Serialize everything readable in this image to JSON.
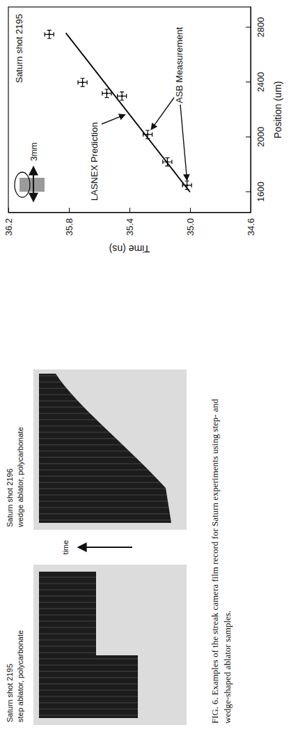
{
  "figure": {
    "panels": [
      {
        "label": "Saturn shot 2195",
        "sublabel": "step ablator, polycarbonate"
      },
      {
        "label": "Saturn shot 2196",
        "sublabel": "wedge ablator, polycarbonate"
      }
    ],
    "time_label": "time",
    "caption": "FIG. 6. Examples of the streak camera film record for Saturn experiments using step- and wedge-shaped ablator samples."
  },
  "chart_data": {
    "type": "scatter",
    "title": "Saturn shot 2195",
    "xlabel": "Position (um)",
    "ylabel": "Time (ns)",
    "inset_label": "3mm",
    "series": [
      {
        "name": "ASB Measurement",
        "type": "scatter",
        "marker": "cross",
        "color": "#000000",
        "x": [
          1650,
          1820,
          2020,
          2300,
          2320,
          2400,
          2750
        ],
        "values": [
          35.02,
          35.15,
          35.28,
          35.45,
          35.55,
          35.71,
          35.93
        ],
        "x_error": [
          30,
          30,
          30,
          30,
          30,
          30,
          30
        ],
        "y_error": [
          0.03,
          0.03,
          0.03,
          0.03,
          0.03,
          0.03,
          0.03
        ]
      },
      {
        "name": "LASNEX Prediction",
        "type": "line",
        "line_style": "solid",
        "color": "#000000",
        "x": [
          1600,
          2760
        ],
        "values": [
          35.0,
          35.82
        ]
      }
    ],
    "xlim": [
      1450,
      2950
    ],
    "ylim": [
      34.6,
      36.2
    ],
    "xticks": [
      1600,
      2000,
      2400,
      2800
    ],
    "yticks": [
      34.6,
      {
        "value": 35.0,
        "label": "35.0"
      },
      35.4,
      35.8,
      36.2
    ]
  }
}
